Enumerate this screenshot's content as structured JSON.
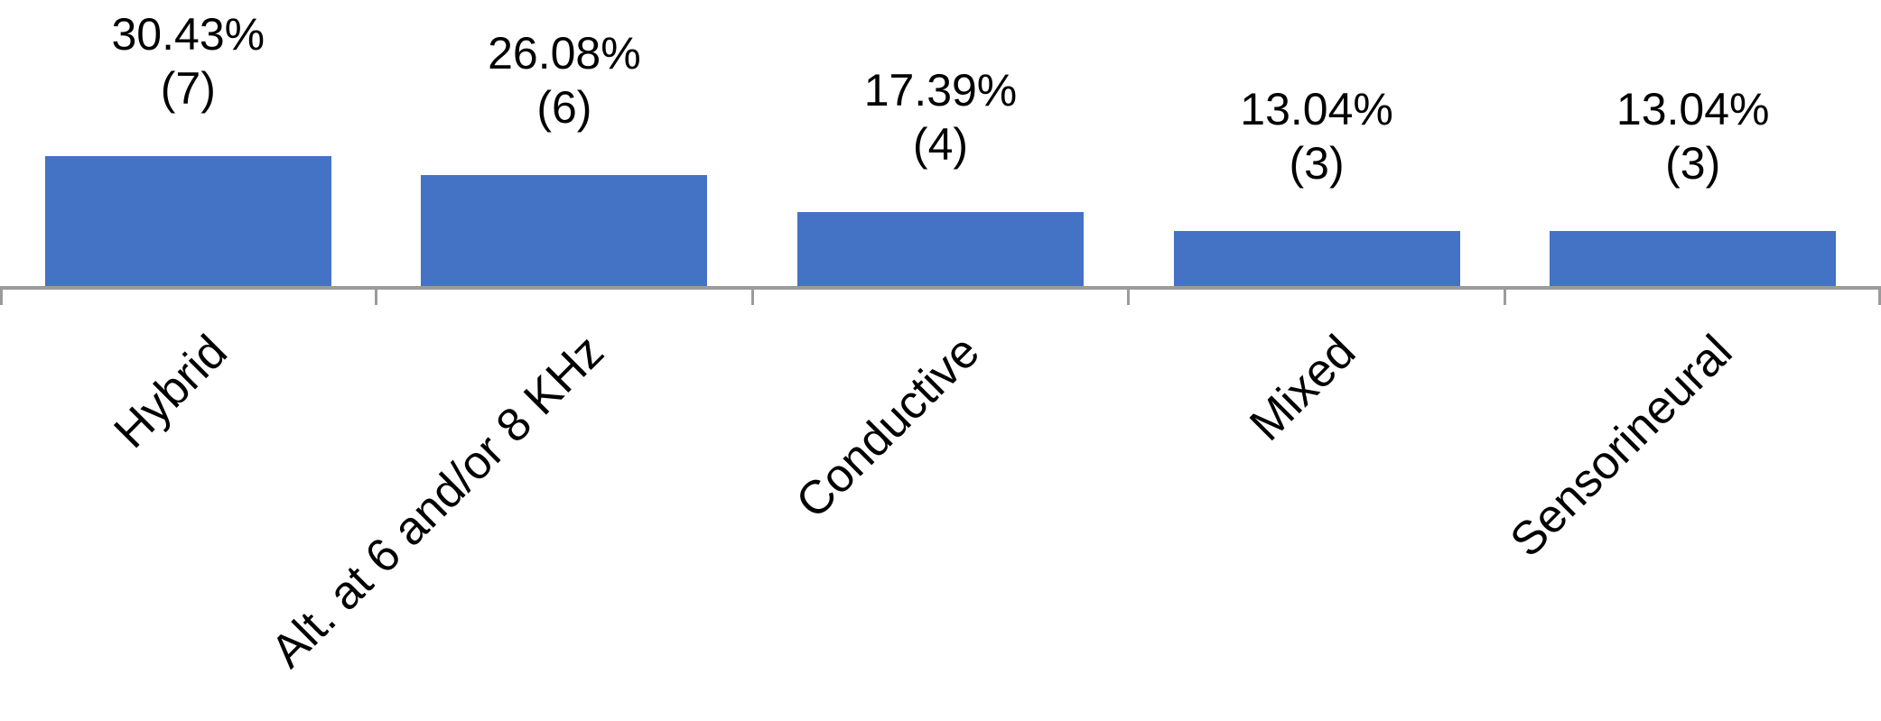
{
  "chart_data": {
    "type": "bar",
    "title": "",
    "xlabel": "",
    "ylabel": "",
    "categories": [
      "Hybrid",
      "Alt. at 6 and/or 8 KHz",
      "Conductive",
      "Mixed",
      "Sensorineural"
    ],
    "values": [
      30.43,
      26.08,
      17.39,
      13.04,
      13.04
    ],
    "counts": [
      7,
      6,
      4,
      3,
      3
    ],
    "data_labels": [
      {
        "percent": "30.43%",
        "count": "(7)"
      },
      {
        "percent": "26.08%",
        "count": "(6)"
      },
      {
        "percent": "17.39%",
        "count": "(4)"
      },
      {
        "percent": "13.04%",
        "count": "(3)"
      },
      {
        "percent": "13.04%",
        "count": "(3)"
      }
    ],
    "ylim": [
      0,
      33.5
    ],
    "grid": false,
    "legend": false,
    "y_axis_visible": false,
    "x_axis": {
      "tick_marks": "between-categories",
      "tick_count": 6,
      "label_rotation_deg": 45
    }
  },
  "colors": {
    "bar_fill": "#4472C4",
    "axis_line": "#9B9B9B",
    "label_text": "#000000",
    "background": "#FFFFFF"
  }
}
